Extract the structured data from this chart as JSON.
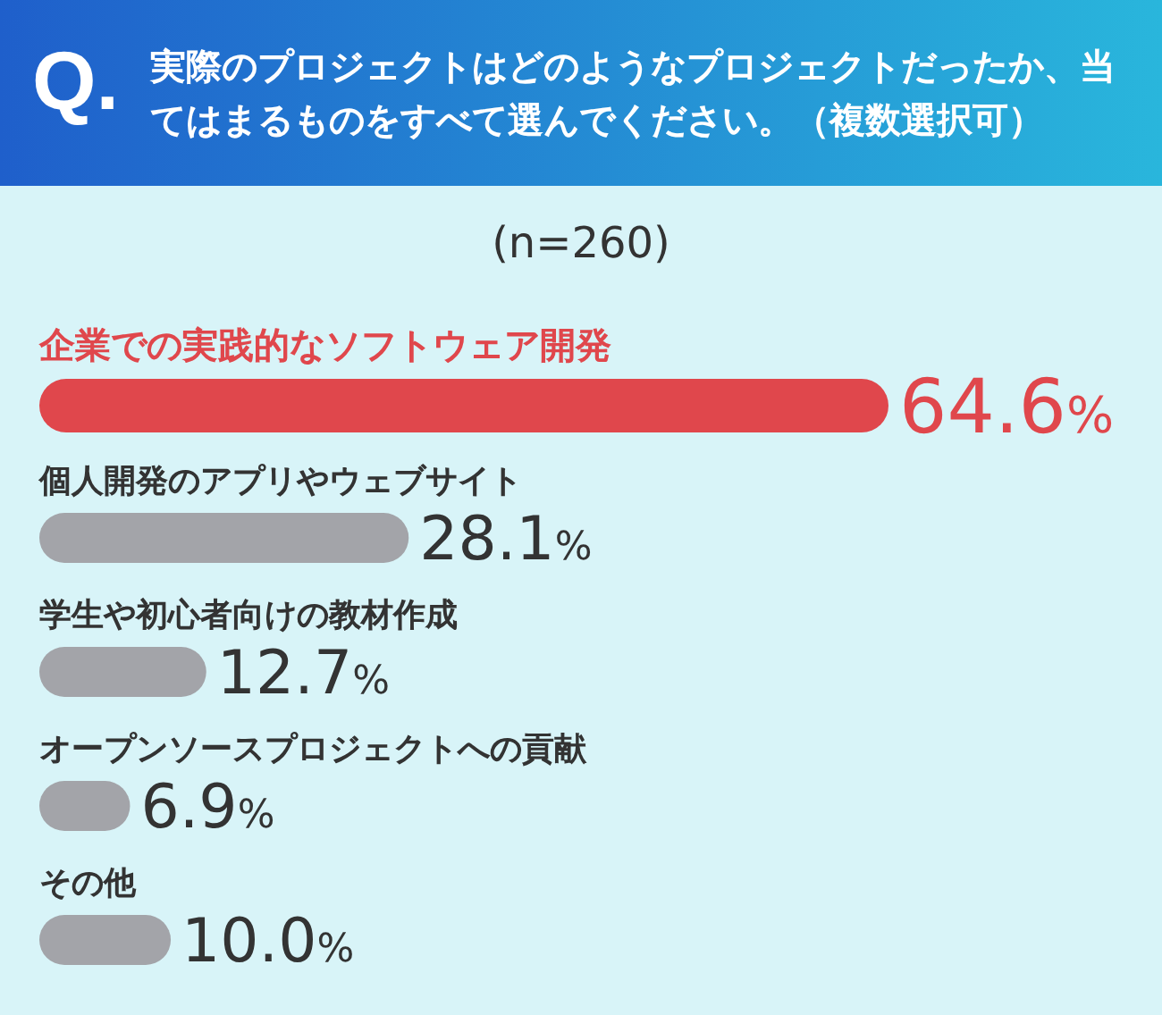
{
  "chart_data": {
    "type": "bar",
    "orientation": "horizontal",
    "title": "実際のプロジェクトはどのようなプロジェクトだったか、当てはまるものをすべて選んでください。（複数選択可）",
    "subtitle": "(n=260)",
    "annotations": [
      "Q."
    ],
    "categories": [
      "企業での実践的なソフトウェア開発",
      "個人開発のアプリやウェブサイト",
      "学生や初心者向けの教材作成",
      "オープンソースプロジェクトへの貢献",
      "その他"
    ],
    "values": [
      64.6,
      28.1,
      12.7,
      6.9,
      10.0
    ],
    "value_labels": [
      "64.6%",
      "28.1%",
      "12.7%",
      "6.9%",
      "10.0%"
    ],
    "colors": [
      "#e0474c",
      "#a3a4a9",
      "#a3a4a9",
      "#a3a4a9",
      "#a3a4a9"
    ]
  }
}
